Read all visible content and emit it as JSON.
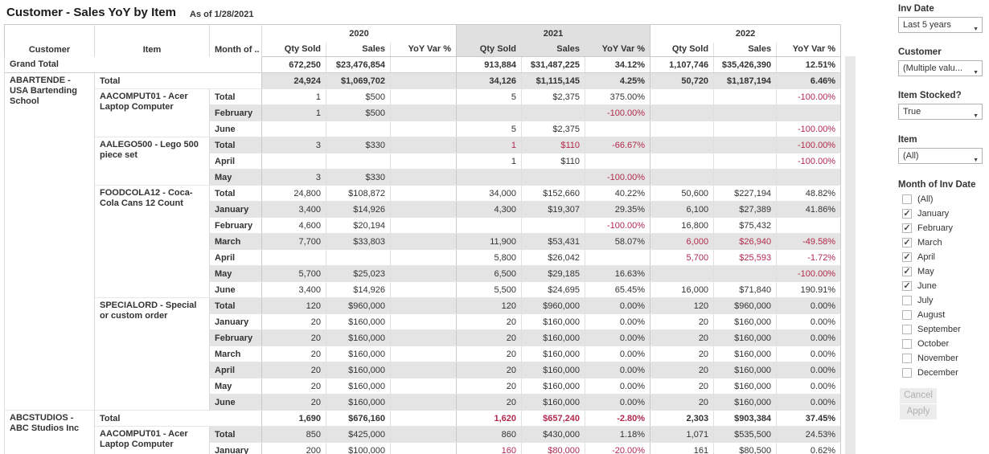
{
  "header": {
    "title": "Customer - Sales YoY by Item",
    "as_of": "As of 1/28/2021"
  },
  "table": {
    "row_headers": [
      "Customer",
      "Item",
      "Month of .."
    ],
    "years": [
      "2020",
      "2021",
      "2022"
    ],
    "highlighted_year": "2021",
    "measures": [
      "Qty Sold",
      "Sales",
      "YoY Var %"
    ],
    "grand_total": {
      "label": "Grand Total",
      "cells": [
        [
          "672,250",
          "$23,476,854",
          ""
        ],
        [
          "913,884",
          "$31,487,225",
          "34.12%"
        ],
        [
          "1,107,746",
          "$35,426,390",
          "12.51%"
        ]
      ]
    },
    "total_label": "Total",
    "customers": [
      {
        "name": "ABARTENDE - USA Bartending School",
        "total": [
          [
            "24,924",
            "$1,069,702",
            ""
          ],
          [
            "34,126",
            "$1,115,145",
            "4.25%"
          ],
          [
            "50,720",
            "$1,187,194",
            "6.46%"
          ]
        ],
        "items": [
          {
            "name": "AACOMPUT01 - Acer Laptop Computer",
            "total": [
              [
                "1",
                "$500",
                ""
              ],
              [
                "5",
                "$2,375",
                "375.00%"
              ],
              [
                "",
                "",
                "-100.00%"
              ]
            ],
            "months": [
              {
                "label": "February",
                "cells": [
                  [
                    "1",
                    "$500",
                    ""
                  ],
                  [
                    "",
                    "",
                    "-100.00%"
                  ],
                  [
                    "",
                    "",
                    ""
                  ]
                ]
              },
              {
                "label": "June",
                "cells": [
                  [
                    "",
                    "",
                    ""
                  ],
                  [
                    "5",
                    "$2,375",
                    ""
                  ],
                  [
                    "",
                    "",
                    "-100.00%"
                  ]
                ]
              }
            ]
          },
          {
            "name": "AALEGO500 - Lego 500 piece set",
            "total": [
              [
                "3",
                "$330",
                ""
              ],
              [
                "1",
                "$110",
                "-66.67%"
              ],
              [
                "",
                "",
                "-100.00%"
              ]
            ],
            "months": [
              {
                "label": "April",
                "cells": [
                  [
                    "",
                    "",
                    ""
                  ],
                  [
                    "1",
                    "$110",
                    ""
                  ],
                  [
                    "",
                    "",
                    "-100.00%"
                  ]
                ]
              },
              {
                "label": "May",
                "cells": [
                  [
                    "3",
                    "$330",
                    ""
                  ],
                  [
                    "",
                    "",
                    "-100.00%"
                  ],
                  [
                    "",
                    "",
                    ""
                  ]
                ]
              }
            ]
          },
          {
            "name": "FOODCOLA12 - Coca-Cola Cans 12 Count",
            "total": [
              [
                "24,800",
                "$108,872",
                ""
              ],
              [
                "34,000",
                "$152,660",
                "40.22%"
              ],
              [
                "50,600",
                "$227,194",
                "48.82%"
              ]
            ],
            "months": [
              {
                "label": "January",
                "cells": [
                  [
                    "3,400",
                    "$14,926",
                    ""
                  ],
                  [
                    "4,300",
                    "$19,307",
                    "29.35%"
                  ],
                  [
                    "6,100",
                    "$27,389",
                    "41.86%"
                  ]
                ]
              },
              {
                "label": "February",
                "cells": [
                  [
                    "4,600",
                    "$20,194",
                    ""
                  ],
                  [
                    "",
                    "",
                    "-100.00%"
                  ],
                  [
                    "16,800",
                    "$75,432",
                    ""
                  ]
                ]
              },
              {
                "label": "March",
                "cells": [
                  [
                    "7,700",
                    "$33,803",
                    ""
                  ],
                  [
                    "11,900",
                    "$53,431",
                    "58.07%"
                  ],
                  [
                    "6,000",
                    "$26,940",
                    "-49.58%"
                  ]
                ]
              },
              {
                "label": "April",
                "cells": [
                  [
                    "",
                    "",
                    ""
                  ],
                  [
                    "5,800",
                    "$26,042",
                    ""
                  ],
                  [
                    "5,700",
                    "$25,593",
                    "-1.72%"
                  ]
                ]
              },
              {
                "label": "May",
                "cells": [
                  [
                    "5,700",
                    "$25,023",
                    ""
                  ],
                  [
                    "6,500",
                    "$29,185",
                    "16.63%"
                  ],
                  [
                    "",
                    "",
                    "-100.00%"
                  ]
                ]
              },
              {
                "label": "June",
                "cells": [
                  [
                    "3,400",
                    "$14,926",
                    ""
                  ],
                  [
                    "5,500",
                    "$24,695",
                    "65.45%"
                  ],
                  [
                    "16,000",
                    "$71,840",
                    "190.91%"
                  ]
                ]
              }
            ]
          },
          {
            "name": "SPECIALORD - Special or custom order",
            "total": [
              [
                "120",
                "$960,000",
                ""
              ],
              [
                "120",
                "$960,000",
                "0.00%"
              ],
              [
                "120",
                "$960,000",
                "0.00%"
              ]
            ],
            "months": [
              {
                "label": "January",
                "cells": [
                  [
                    "20",
                    "$160,000",
                    ""
                  ],
                  [
                    "20",
                    "$160,000",
                    "0.00%"
                  ],
                  [
                    "20",
                    "$160,000",
                    "0.00%"
                  ]
                ]
              },
              {
                "label": "February",
                "cells": [
                  [
                    "20",
                    "$160,000",
                    ""
                  ],
                  [
                    "20",
                    "$160,000",
                    "0.00%"
                  ],
                  [
                    "20",
                    "$160,000",
                    "0.00%"
                  ]
                ]
              },
              {
                "label": "March",
                "cells": [
                  [
                    "20",
                    "$160,000",
                    ""
                  ],
                  [
                    "20",
                    "$160,000",
                    "0.00%"
                  ],
                  [
                    "20",
                    "$160,000",
                    "0.00%"
                  ]
                ]
              },
              {
                "label": "April",
                "cells": [
                  [
                    "20",
                    "$160,000",
                    ""
                  ],
                  [
                    "20",
                    "$160,000",
                    "0.00%"
                  ],
                  [
                    "20",
                    "$160,000",
                    "0.00%"
                  ]
                ]
              },
              {
                "label": "May",
                "cells": [
                  [
                    "20",
                    "$160,000",
                    ""
                  ],
                  [
                    "20",
                    "$160,000",
                    "0.00%"
                  ],
                  [
                    "20",
                    "$160,000",
                    "0.00%"
                  ]
                ]
              },
              {
                "label": "June",
                "cells": [
                  [
                    "20",
                    "$160,000",
                    ""
                  ],
                  [
                    "20",
                    "$160,000",
                    "0.00%"
                  ],
                  [
                    "20",
                    "$160,000",
                    "0.00%"
                  ]
                ]
              }
            ]
          }
        ]
      },
      {
        "name": "ABCSTUDIOS - ABC Studios Inc",
        "total": [
          [
            "1,690",
            "$676,160",
            ""
          ],
          [
            "1,620",
            "$657,240",
            "-2.80%"
          ],
          [
            "2,303",
            "$903,384",
            "37.45%"
          ]
        ],
        "items": [
          {
            "name": "AACOMPUT01 - Acer Laptop Computer",
            "total": [
              [
                "850",
                "$425,000",
                ""
              ],
              [
                "860",
                "$430,000",
                "1.18%"
              ],
              [
                "1,071",
                "$535,500",
                "24.53%"
              ]
            ],
            "months": [
              {
                "label": "January",
                "cells": [
                  [
                    "200",
                    "$100,000",
                    ""
                  ],
                  [
                    "160",
                    "$80,000",
                    "-20.00%"
                  ],
                  [
                    "161",
                    "$80,500",
                    "0.62%"
                  ]
                ]
              }
            ]
          }
        ]
      }
    ]
  },
  "filters": {
    "inv_date": {
      "label": "Inv Date",
      "value": "Last 5 years"
    },
    "customer": {
      "label": "Customer",
      "value": "(Multiple valu..."
    },
    "item_stocked": {
      "label": "Item Stocked?",
      "value": "True"
    },
    "item": {
      "label": "Item",
      "value": "(All)"
    },
    "month_of_inv_date": {
      "label": "Month of Inv Date",
      "options": [
        {
          "label": "(All)",
          "checked": false
        },
        {
          "label": "January",
          "checked": true
        },
        {
          "label": "February",
          "checked": true
        },
        {
          "label": "March",
          "checked": true
        },
        {
          "label": "April",
          "checked": true
        },
        {
          "label": "May",
          "checked": true
        },
        {
          "label": "June",
          "checked": true
        },
        {
          "label": "July",
          "checked": false
        },
        {
          "label": "August",
          "checked": false
        },
        {
          "label": "September",
          "checked": false
        },
        {
          "label": "October",
          "checked": false
        },
        {
          "label": "November",
          "checked": false
        },
        {
          "label": "December",
          "checked": false
        }
      ]
    },
    "cancel_label": "Cancel",
    "apply_label": "Apply"
  }
}
